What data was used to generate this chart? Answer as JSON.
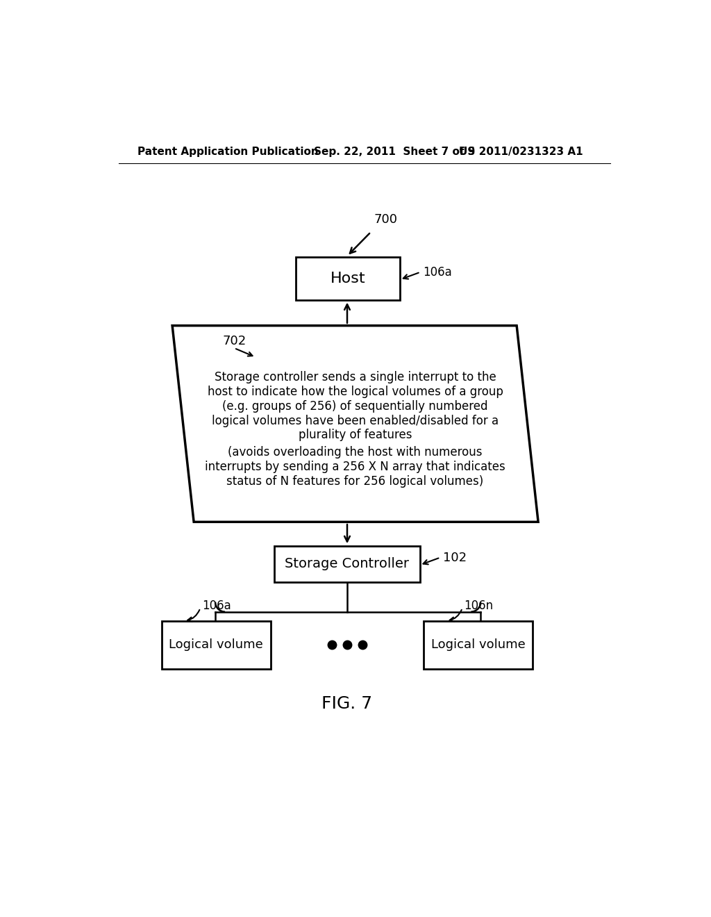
{
  "bg_color": "#ffffff",
  "header_left": "Patent Application Publication",
  "header_center": "Sep. 22, 2011  Sheet 7 of 9",
  "header_right": "US 2011/0231323 A1",
  "fig_label": "FIG. 7",
  "label_700": "700",
  "label_702": "702",
  "label_102": "102",
  "label_106a_host": "106a",
  "label_106a_lv": "106a",
  "label_106n_lv": "106n",
  "host_text": "Host",
  "storage_controller_text": "Storage Controller",
  "lv1_text": "Logical volume",
  "lv2_text": "Logical volume",
  "parallelogram_text1": "Storage controller sends a single interrupt to the\nhost to indicate how the logical volumes of a group\n(e.g. groups of 256) of sequentially numbered\nlogical volumes have been enabled/disabled for a\nplurality of features",
  "parallelogram_text2": "(avoids overloading the host with numerous\ninterrupts by sending a 256 X N array that indicates\nstatus of N features for 256 logical volumes)"
}
